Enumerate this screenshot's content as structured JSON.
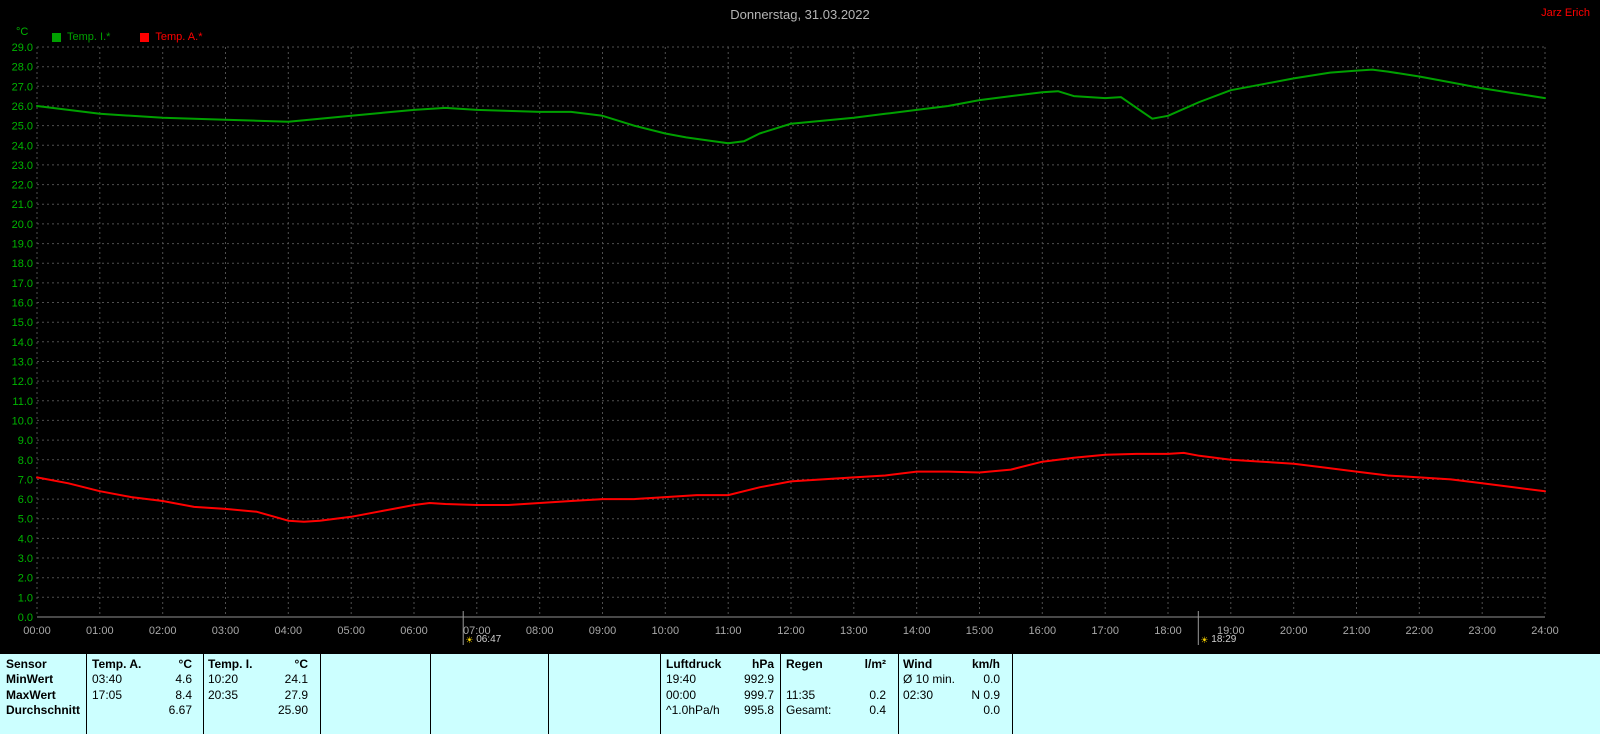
{
  "header": {
    "title": "Donnerstag, 31.03.2022",
    "user": "Jarz Erich"
  },
  "legend": {
    "unit": "°C",
    "items": [
      {
        "label": "Temp. I.*",
        "color": "#00a000"
      },
      {
        "label": "Temp. A.*",
        "color": "#ff0000"
      }
    ]
  },
  "chart_data": {
    "type": "line",
    "title": "Donnerstag, 31.03.2022",
    "xlabel": "",
    "ylabel": "°C",
    "xlim": [
      0,
      24
    ],
    "ylim": [
      0,
      29
    ],
    "y_tick_step": 1.0,
    "grid": true,
    "x_ticks": [
      "00:00",
      "01:00",
      "02:00",
      "03:00",
      "04:00",
      "05:00",
      "06:00",
      "07:00",
      "08:00",
      "09:00",
      "10:00",
      "11:00",
      "12:00",
      "13:00",
      "14:00",
      "15:00",
      "16:00",
      "17:00",
      "18:00",
      "19:00",
      "20:00",
      "21:00",
      "22:00",
      "23:00",
      "24:00"
    ],
    "series": [
      {
        "id": "temp-i",
        "name": "Temp. I.*",
        "color": "#00a000",
        "x": [
          0,
          0.5,
          1,
          1.5,
          2,
          2.5,
          3,
          3.5,
          4,
          4.5,
          5,
          5.5,
          6,
          6.5,
          7,
          7.5,
          8,
          8.5,
          9,
          9.5,
          10,
          10.33,
          10.67,
          11,
          11.25,
          11.5,
          12,
          12.5,
          13,
          13.5,
          14,
          14.5,
          15,
          15.5,
          16,
          16.25,
          16.5,
          17,
          17.25,
          17.5,
          17.75,
          18,
          18.5,
          19,
          19.5,
          20,
          20.58,
          21,
          21.25,
          21.5,
          22,
          22.5,
          23,
          23.5,
          24
        ],
        "y": [
          26.0,
          25.8,
          25.6,
          25.5,
          25.4,
          25.35,
          25.3,
          25.25,
          25.2,
          25.35,
          25.5,
          25.65,
          25.8,
          25.9,
          25.8,
          25.75,
          25.7,
          25.7,
          25.5,
          25.0,
          24.6,
          24.4,
          24.25,
          24.1,
          24.2,
          24.6,
          25.1,
          25.25,
          25.4,
          25.6,
          25.8,
          26.0,
          26.3,
          26.5,
          26.7,
          26.75,
          26.5,
          26.4,
          26.45,
          25.9,
          25.35,
          25.5,
          26.2,
          26.8,
          27.1,
          27.4,
          27.7,
          27.8,
          27.85,
          27.75,
          27.5,
          27.2,
          26.9,
          26.65,
          26.4
        ]
      },
      {
        "id": "temp-a",
        "name": "Temp. A.*",
        "color": "#ff0000",
        "x": [
          0,
          0.5,
          1,
          1.5,
          2,
          2.5,
          3,
          3.5,
          4,
          4.25,
          4.5,
          5,
          5.5,
          6,
          6.25,
          6.5,
          7,
          7.5,
          8,
          8.5,
          9,
          9.5,
          10,
          10.5,
          11,
          11.5,
          12,
          12.5,
          13,
          13.5,
          14,
          14.5,
          15,
          15.5,
          16,
          16.5,
          17,
          17.5,
          18,
          18.25,
          18.5,
          19,
          19.5,
          20,
          20.5,
          21,
          21.5,
          22,
          22.5,
          23,
          23.5,
          24
        ],
        "y": [
          7.1,
          6.8,
          6.4,
          6.1,
          5.9,
          5.6,
          5.5,
          5.35,
          4.9,
          4.85,
          4.9,
          5.1,
          5.4,
          5.7,
          5.8,
          5.75,
          5.7,
          5.7,
          5.8,
          5.9,
          6.0,
          6.0,
          6.1,
          6.2,
          6.2,
          6.6,
          6.9,
          7.0,
          7.1,
          7.2,
          7.4,
          7.4,
          7.35,
          7.5,
          7.9,
          8.1,
          8.25,
          8.3,
          8.3,
          8.35,
          8.2,
          8.0,
          7.9,
          7.8,
          7.6,
          7.4,
          7.2,
          7.1,
          7.0,
          6.8,
          6.6,
          6.4
        ]
      }
    ],
    "sun_markers": [
      {
        "time": "06:47",
        "hour": 6.783
      },
      {
        "time": "18:29",
        "hour": 18.483
      }
    ]
  },
  "table": {
    "bg": "#ccffff",
    "row_headers": {
      "sensor": "Sensor",
      "min": "MinWert",
      "max": "MaxWert",
      "avg": "Durchschnitt"
    },
    "temp_a": {
      "name": "Temp. A.",
      "unit": "°C",
      "min_time": "03:40",
      "min_val": "4.6",
      "max_time": "17:05",
      "max_val": "8.4",
      "avg_label": "",
      "avg": "6.67"
    },
    "temp_i": {
      "name": "Temp. I.",
      "unit": "°C",
      "min_time": "10:20",
      "min_val": "24.1",
      "max_time": "20:35",
      "max_val": "27.9",
      "avg_label": "",
      "avg": "25.90"
    },
    "luftdruck": {
      "name": "Luftdruck",
      "unit": "hPa",
      "min_time": "19:40",
      "min_val": "992.9",
      "max_time": "00:00",
      "max_val": "999.7",
      "avg_label": "^1.0hPa/h",
      "avg": "995.8"
    },
    "regen": {
      "name": "Regen",
      "unit": "l/m²",
      "min_time": "",
      "min_val": "",
      "max_time": "11:35",
      "max_val": "0.2",
      "avg_label": "Gesamt:",
      "avg": "0.4"
    },
    "wind": {
      "name": "Wind",
      "unit": "km/h",
      "min_time": "Ø 10 min.",
      "min_val": "0.0",
      "max_time": "02:30",
      "max_val": "N 0.9",
      "avg_label": "",
      "avg": "0.0"
    }
  }
}
